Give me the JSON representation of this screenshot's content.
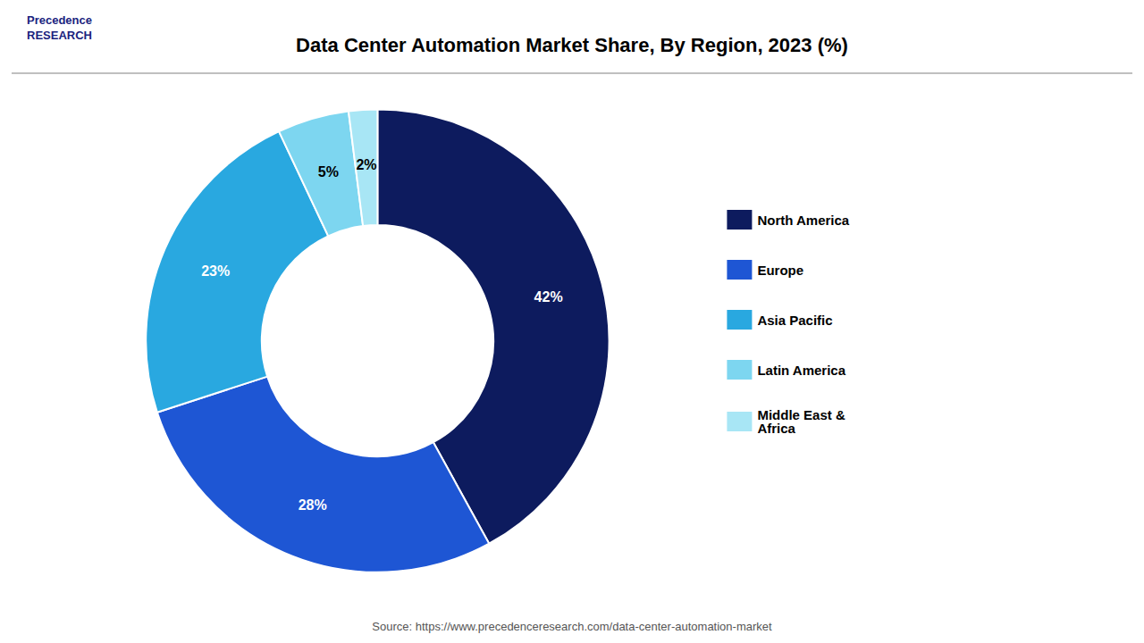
{
  "chart_data": {
    "type": "donut",
    "title": "Data Center Automation Market Share, By Region, 2023 (%)",
    "categories": [
      "North America",
      "Europe",
      "Asia Pacific",
      "Latin America",
      "Middle East &\nAfrica"
    ],
    "values": [
      42,
      28,
      23,
      5,
      2
    ],
    "value_labels": [
      "42%",
      "28%",
      "23%",
      "5%",
      "2%"
    ],
    "colors": [
      "#0d1b5e",
      "#1e56d4",
      "#29a8e0",
      "#7dd6f0",
      "#a8e6f5"
    ],
    "data_labels": true,
    "legend": "right",
    "annotations": [
      "Precedence\nRESEARCH",
      "Source: https://www.precedenceresearch.com/data-center-automation-market"
    ]
  }
}
